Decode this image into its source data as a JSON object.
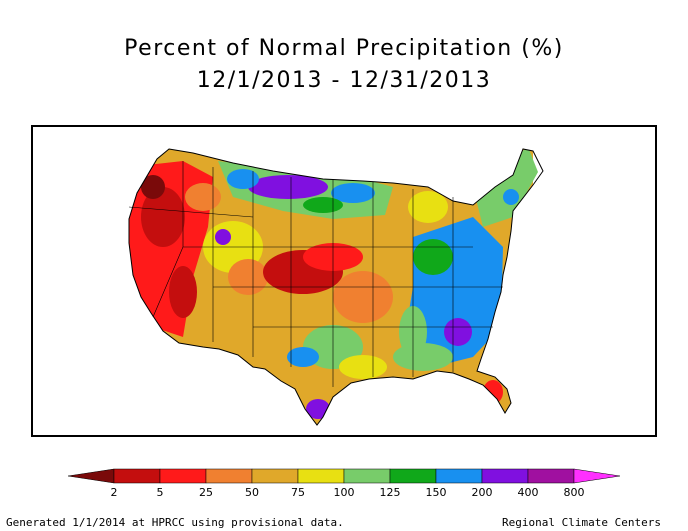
{
  "title": "Percent of Normal Precipitation (%)",
  "period": "12/1/2013 - 12/31/2013",
  "legend": {
    "labels": [
      "2",
      "5",
      "25",
      "50",
      "75",
      "100",
      "125",
      "150",
      "200",
      "400",
      "800"
    ],
    "colors": [
      "#7a0a0a",
      "#c40e0e",
      "#ff1a1a",
      "#f08030",
      "#e0a82a",
      "#e8e012",
      "#78cc6a",
      "#10a81a",
      "#1890f0",
      "#8010e0",
      "#a010a0",
      "#ff30ff"
    ]
  },
  "footer": {
    "generated": "Generated 1/1/2014 at HPRCC using provisional data.",
    "credit": "Regional Climate Centers"
  }
}
